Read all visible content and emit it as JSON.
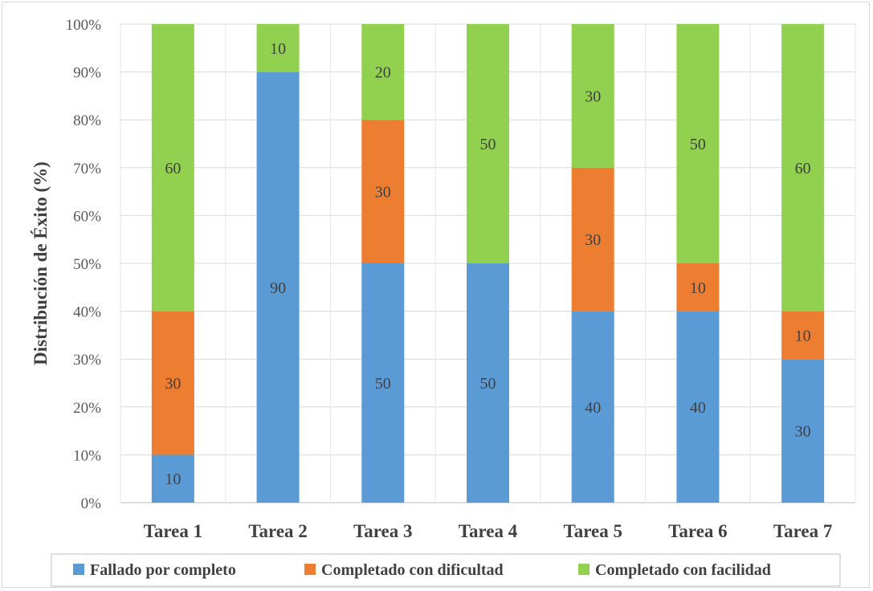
{
  "chart_data": {
    "type": "bar",
    "stacked": true,
    "percent": true,
    "title": "",
    "xlabel": "",
    "ylabel": "Distribución de Éxito (%)",
    "ylim": [
      0,
      100
    ],
    "yticks": [
      "0%",
      "10%",
      "20%",
      "30%",
      "40%",
      "50%",
      "60%",
      "70%",
      "80%",
      "90%",
      "100%"
    ],
    "grid": true,
    "legend_position": "bottom",
    "categories": [
      "Tarea 1",
      "Tarea 2",
      "Tarea 3",
      "Tarea 4",
      "Tarea 5",
      "Tarea 6",
      "Tarea 7"
    ],
    "series": [
      {
        "name": "Fallado por completo",
        "color": "#5b9bd5",
        "values": [
          10,
          90,
          50,
          50,
          40,
          40,
          30
        ]
      },
      {
        "name": "Completado con dificultad",
        "color": "#ed7d31",
        "values": [
          30,
          0,
          30,
          0,
          30,
          10,
          10
        ]
      },
      {
        "name": "Completado con facilidad",
        "color": "#92d050",
        "values": [
          60,
          10,
          20,
          50,
          30,
          50,
          60
        ]
      }
    ]
  }
}
